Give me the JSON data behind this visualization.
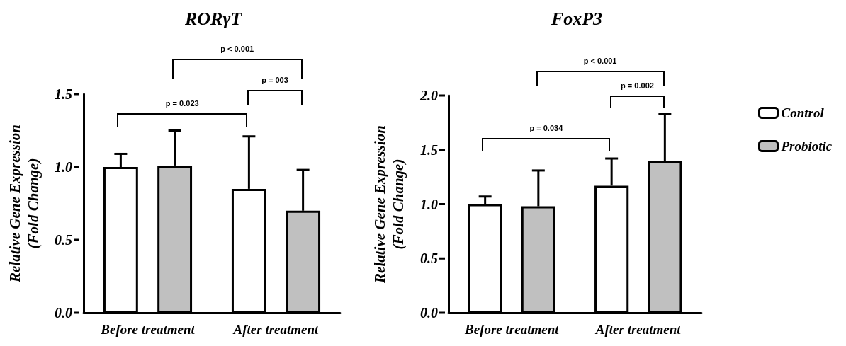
{
  "chart_data": [
    {
      "type": "bar",
      "title": "RORγT",
      "ylabel": "Relative Gene Expression\n(Fold Change)",
      "categories": [
        "Before treatment",
        "After treatment"
      ],
      "series": [
        {
          "color": "#ffffff",
          "values": [
            1.0,
            0.85
          ],
          "errors": [
            [
              1.0,
              1.09
            ],
            [
              0.85,
              1.21
            ]
          ]
        },
        {
          "color": "#c0c0c0",
          "values": [
            1.01,
            0.7
          ],
          "errors": [
            [
              1.01,
              1.25
            ],
            [
              0.7,
              0.98
            ]
          ]
        }
      ],
      "ylim": [
        0,
        1.5
      ],
      "yticks": [
        {
          "value": 0,
          "label": "0.0"
        },
        {
          "value": 0.5,
          "label": "0.5"
        },
        {
          "value": 1,
          "label": "1.0"
        },
        {
          "value": 1.5,
          "label": "1.5"
        }
      ],
      "grid": false,
      "legend": false,
      "annotations": [
        "p < 0.001",
        "p = 003",
        "p = 0.023"
      ]
    },
    {
      "type": "bar",
      "title": "FoxP3",
      "ylabel": "Relative Gene Expression\n(Fold Change)",
      "categories": [
        "Before treatment",
        "After treatment"
      ],
      "series": [
        {
          "name": "Control",
          "color": "#ffffff",
          "values": [
            1.0,
            1.17
          ],
          "errors": [
            [
              1.0,
              1.07
            ],
            [
              1.17,
              1.42
            ]
          ]
        },
        {
          "name": "Probiotic",
          "color": "#c0c0c0",
          "values": [
            0.98,
            1.4
          ],
          "errors": [
            [
              0.98,
              1.31
            ],
            [
              1.4,
              1.83
            ]
          ]
        }
      ],
      "ylim": [
        0,
        2
      ],
      "yticks": [
        {
          "value": 0,
          "label": "0.0"
        },
        {
          "value": 0.5,
          "label": "0.5"
        },
        {
          "value": 1,
          "label": "1.0"
        },
        {
          "value": 1.5,
          "label": "1.5"
        },
        {
          "value": 2,
          "label": "2.0"
        }
      ],
      "grid": false,
      "legend": "right",
      "annotations": [
        "p < 0.001",
        "p = 0.002",
        "p = 0.034"
      ]
    }
  ]
}
